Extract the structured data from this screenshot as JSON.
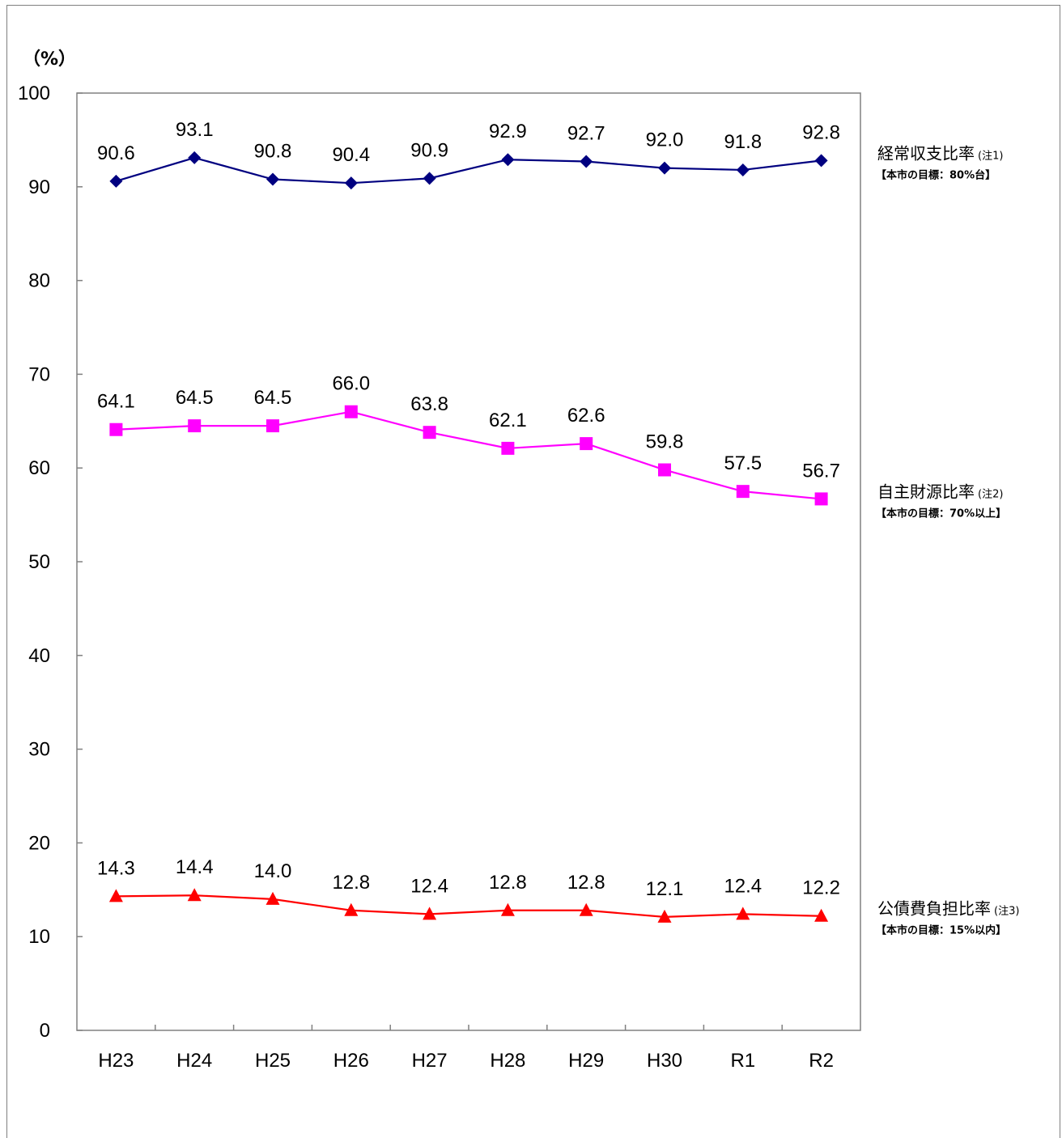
{
  "chart_data": {
    "type": "line",
    "ylabel": "（%）",
    "ylim": [
      0,
      100
    ],
    "yticks": [
      0,
      10,
      20,
      30,
      40,
      50,
      60,
      70,
      80,
      90,
      100
    ],
    "categories": [
      "H23",
      "H24",
      "H25",
      "H26",
      "H27",
      "H28",
      "H29",
      "H30",
      "R1",
      "R2"
    ],
    "grid": false,
    "legend": "right",
    "series": [
      {
        "name": "経常収支比率",
        "note": "(注1)",
        "target": "【本市の目標：80%台】",
        "color": "#000080",
        "marker": "diamond",
        "values": [
          90.6,
          93.1,
          90.8,
          90.4,
          90.9,
          92.9,
          92.7,
          92.0,
          91.8,
          92.8
        ],
        "labels": [
          "90.6",
          "93.1",
          "90.8",
          "90.4",
          "90.9",
          "92.9",
          "92.7",
          "92.0",
          "91.8",
          "92.8"
        ]
      },
      {
        "name": "自主財源比率",
        "note": "(注2)",
        "target": "【本市の目標：70%以上】",
        "color": "#ff00ff",
        "marker": "square",
        "values": [
          64.1,
          64.5,
          64.5,
          66.0,
          63.8,
          62.1,
          62.6,
          59.8,
          57.5,
          56.7
        ],
        "labels": [
          "64.1",
          "64.5",
          "64.5",
          "66.0",
          "63.8",
          "62.1",
          "62.6",
          "59.8",
          "57.5",
          "56.7"
        ]
      },
      {
        "name": "公債費負担比率",
        "note": "(注3)",
        "target": "【本市の目標：15%以内】",
        "color": "#ff0000",
        "marker": "triangle",
        "values": [
          14.3,
          14.4,
          14.0,
          12.8,
          12.4,
          12.8,
          12.8,
          12.1,
          12.4,
          12.2
        ],
        "labels": [
          "14.3",
          "14.4",
          "14.0",
          "12.8",
          "12.4",
          "12.8",
          "12.8",
          "12.1",
          "12.4",
          "12.2"
        ]
      }
    ]
  }
}
